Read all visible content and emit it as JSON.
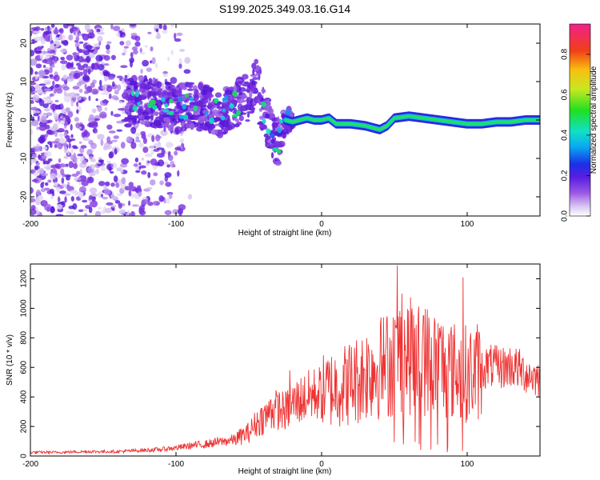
{
  "figure": {
    "title": "S199.2025.349.03.16.G14"
  },
  "colors": {
    "snr_line": "#ee3333",
    "axis": "#000000",
    "background": "#ffffff"
  },
  "chart_data": [
    {
      "type": "heatmap",
      "title": "S199.2025.349.03.16.G14",
      "xlabel": "Height of straight line (km)",
      "ylabel": "Frequency (Hz)",
      "xlim": [
        -200,
        150
      ],
      "ylim": [
        -25,
        25
      ],
      "xticks": [
        -200,
        -100,
        0,
        100
      ],
      "xtick_labels": [
        "-200",
        "-100",
        "0",
        "100"
      ],
      "yticks": [
        -20,
        -10,
        0,
        10,
        20
      ],
      "ytick_labels": [
        "-20",
        "-10",
        "0",
        "10",
        "20"
      ],
      "colorbar": {
        "label": "Normalized spectral amplitude",
        "range": [
          0,
          0.95
        ],
        "ticks": [
          0.0,
          0.2,
          0.4,
          0.6,
          0.8
        ],
        "tick_labels": [
          "0.0",
          "0.2",
          "0.4",
          "0.6",
          "0.8"
        ],
        "colormap": "rainbow (white-lavender-purple-blue-cyan-green-yellow-orange-red-magenta)"
      },
      "ridge": {
        "description": "Dominant Doppler-frequency track; scattered noise below about -130 km, coherent narrow line near 0 Hz above about -20 km",
        "x": [
          -130,
          -120,
          -110,
          -100,
          -90,
          -80,
          -70,
          -60,
          -50,
          -45,
          -40,
          -35,
          -30,
          -25,
          -20,
          -15,
          -10,
          -5,
          0,
          5,
          10,
          20,
          30,
          40,
          45,
          50,
          60,
          70,
          80,
          90,
          100,
          110,
          120,
          130,
          140,
          150
        ],
        "frequency": [
          5,
          5,
          4,
          3,
          4,
          3,
          2,
          4,
          6,
          10,
          2,
          -3,
          -6,
          0,
          -0.5,
          0,
          0.5,
          0,
          0,
          0.5,
          -1,
          -1,
          -1.5,
          -2.5,
          -1.5,
          0.5,
          1,
          0.5,
          0,
          -0.5,
          -1,
          -1,
          -0.5,
          -0.5,
          0,
          0
        ],
        "amplitude": [
          0.3,
          0.4,
          0.45,
          0.5,
          0.45,
          0.4,
          0.35,
          0.4,
          0.45,
          0.35,
          0.4,
          0.3,
          0.35,
          0.45,
          0.55,
          0.6,
          0.65,
          0.75,
          0.85,
          0.8,
          0.85,
          0.9,
          0.9,
          0.85,
          0.7,
          0.6,
          0.65,
          0.6,
          0.6,
          0.7,
          0.9,
          0.9,
          0.85,
          0.85,
          0.55,
          0.5
        ]
      }
    },
    {
      "type": "line",
      "xlabel": "Height of straight line (km)",
      "ylabel": "SNR (10 * v/v)",
      "xlim": [
        -200,
        150
      ],
      "ylim": [
        0,
        1300
      ],
      "xticks": [
        -200,
        -100,
        0,
        100
      ],
      "xtick_labels": [
        "-200",
        "-100",
        "0",
        "100"
      ],
      "yticks": [
        0,
        200,
        400,
        600,
        800,
        1000,
        1200
      ],
      "ytick_labels": [
        "0",
        "200",
        "400",
        "600",
        "800",
        "1000",
        "1200"
      ],
      "series": [
        {
          "name": "SNR",
          "x": [
            -200,
            -190,
            -180,
            -170,
            -160,
            -150,
            -140,
            -130,
            -120,
            -110,
            -100,
            -90,
            -80,
            -70,
            -60,
            -50,
            -45,
            -40,
            -35,
            -30,
            -25,
            -20,
            -15,
            -10,
            -5,
            0,
            5,
            10,
            15,
            20,
            25,
            30,
            35,
            40,
            45,
            50,
            55,
            60,
            65,
            70,
            75,
            80,
            85,
            90,
            95,
            100,
            105,
            110,
            115,
            120,
            125,
            130,
            135,
            140,
            145,
            150
          ],
          "values": [
            25,
            25,
            25,
            28,
            30,
            30,
            30,
            35,
            40,
            45,
            55,
            70,
            80,
            95,
            110,
            160,
            220,
            260,
            290,
            320,
            300,
            350,
            380,
            400,
            420,
            430,
            450,
            470,
            480,
            500,
            520,
            560,
            600,
            600,
            620,
            650,
            700,
            680,
            650,
            660,
            640,
            620,
            600,
            580,
            560,
            560,
            570,
            590,
            610,
            600,
            600,
            610,
            590,
            560,
            540,
            520
          ],
          "peaks": {
            "x": [
              -35,
              -22,
              52,
              55,
              62,
              70,
              82,
              97
            ],
            "values": [
              380,
              580,
              1290,
              1100,
              1000,
              950,
              880,
              1210
            ]
          }
        }
      ]
    }
  ]
}
